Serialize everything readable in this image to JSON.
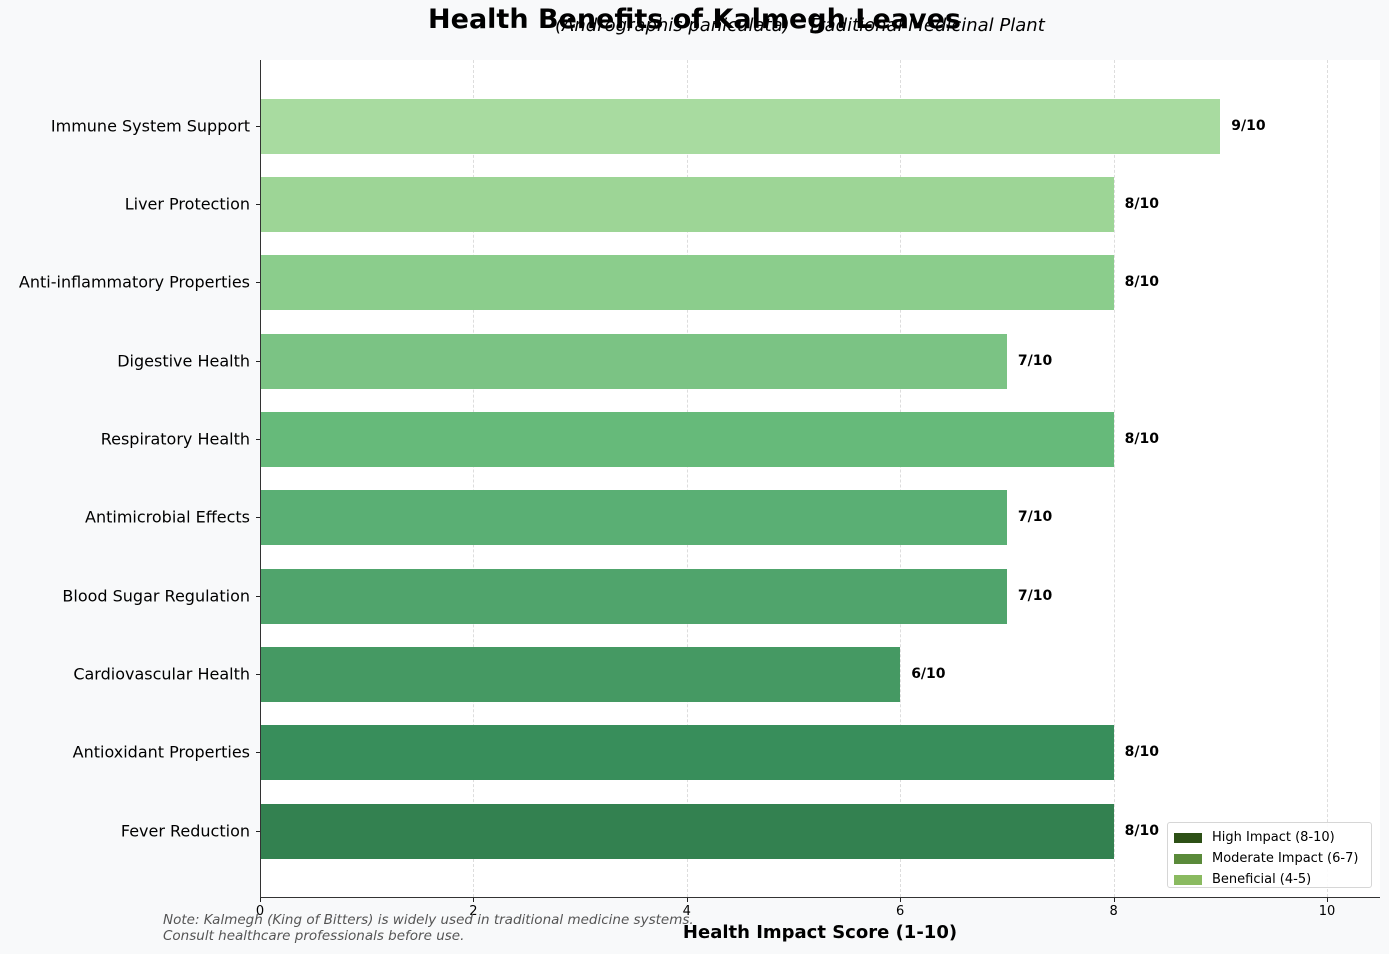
{
  "chart": {
    "title": "Health Benefits of Kalmegh Leaves",
    "subtitle": "(Andrographis paniculata) - Traditional Medicinal Plant",
    "xlabel": "Health Impact Score (1-10)",
    "note_line1": "Note: Kalmegh (King of Bitters) is widely used in traditional medicine systems.",
    "note_line2": "Consult healthcare professionals before use.",
    "xticks": [
      "0",
      "2",
      "4",
      "6",
      "8",
      "10"
    ],
    "bars": [
      {
        "label": "Immune System Support",
        "value": 9,
        "display": "9/10",
        "color": "#a8dba0"
      },
      {
        "label": "Liver Protection",
        "value": 8,
        "display": "8/10",
        "color": "#9dd596"
      },
      {
        "label": "Anti-inflammatory Properties",
        "value": 8,
        "display": "8/10",
        "color": "#8bcd8c"
      },
      {
        "label": "Digestive Health",
        "value": 7,
        "display": "7/10",
        "color": "#7bc384"
      },
      {
        "label": "Respiratory Health",
        "value": 8,
        "display": "8/10",
        "color": "#66ba7a"
      },
      {
        "label": "Antimicrobial Effects",
        "value": 7,
        "display": "7/10",
        "color": "#5aaf74"
      },
      {
        "label": "Blood Sugar Regulation",
        "value": 7,
        "display": "7/10",
        "color": "#50a46c"
      },
      {
        "label": "Cardiovascular Health",
        "value": 6,
        "display": "6/10",
        "color": "#459963"
      },
      {
        "label": "Antioxidant Properties",
        "value": 8,
        "display": "8/10",
        "color": "#388e5b"
      },
      {
        "label": "Fever Reduction",
        "value": 8,
        "display": "8/10",
        "color": "#338150"
      }
    ],
    "legend": [
      {
        "label": "High Impact (8-10)",
        "color": "#2d5016"
      },
      {
        "label": "Moderate Impact (6-7)",
        "color": "#5a8a3a"
      },
      {
        "label": "Beneficial (4-5)",
        "color": "#8aba60"
      }
    ]
  },
  "chart_data": {
    "type": "bar",
    "orientation": "horizontal",
    "title": "Health Benefits of Kalmegh Leaves",
    "subtitle": "(Andrographis paniculata) - Traditional Medicinal Plant",
    "xlabel": "Health Impact Score (1-10)",
    "ylabel": "",
    "categories": [
      "Immune System Support",
      "Liver Protection",
      "Anti-inflammatory Properties",
      "Digestive Health",
      "Respiratory Health",
      "Antimicrobial Effects",
      "Blood Sugar Regulation",
      "Cardiovascular Health",
      "Antioxidant Properties",
      "Fever Reduction"
    ],
    "values": [
      9,
      8,
      8,
      7,
      8,
      7,
      7,
      6,
      8,
      8
    ],
    "data_labels": [
      "9/10",
      "8/10",
      "8/10",
      "7/10",
      "8/10",
      "7/10",
      "7/10",
      "6/10",
      "8/10",
      "8/10"
    ],
    "xlim": [
      0,
      10.5
    ],
    "xticks": [
      0,
      2,
      4,
      6,
      8,
      10
    ],
    "grid": "x, dashed",
    "legend": [
      "High Impact (8-10)",
      "Moderate Impact (6-7)",
      "Beneficial (4-5)"
    ],
    "legend_position": "lower right",
    "annotation": "Note: Kalmegh (King of Bitters) is widely used in traditional medicine systems. Consult healthcare professionals before use."
  }
}
